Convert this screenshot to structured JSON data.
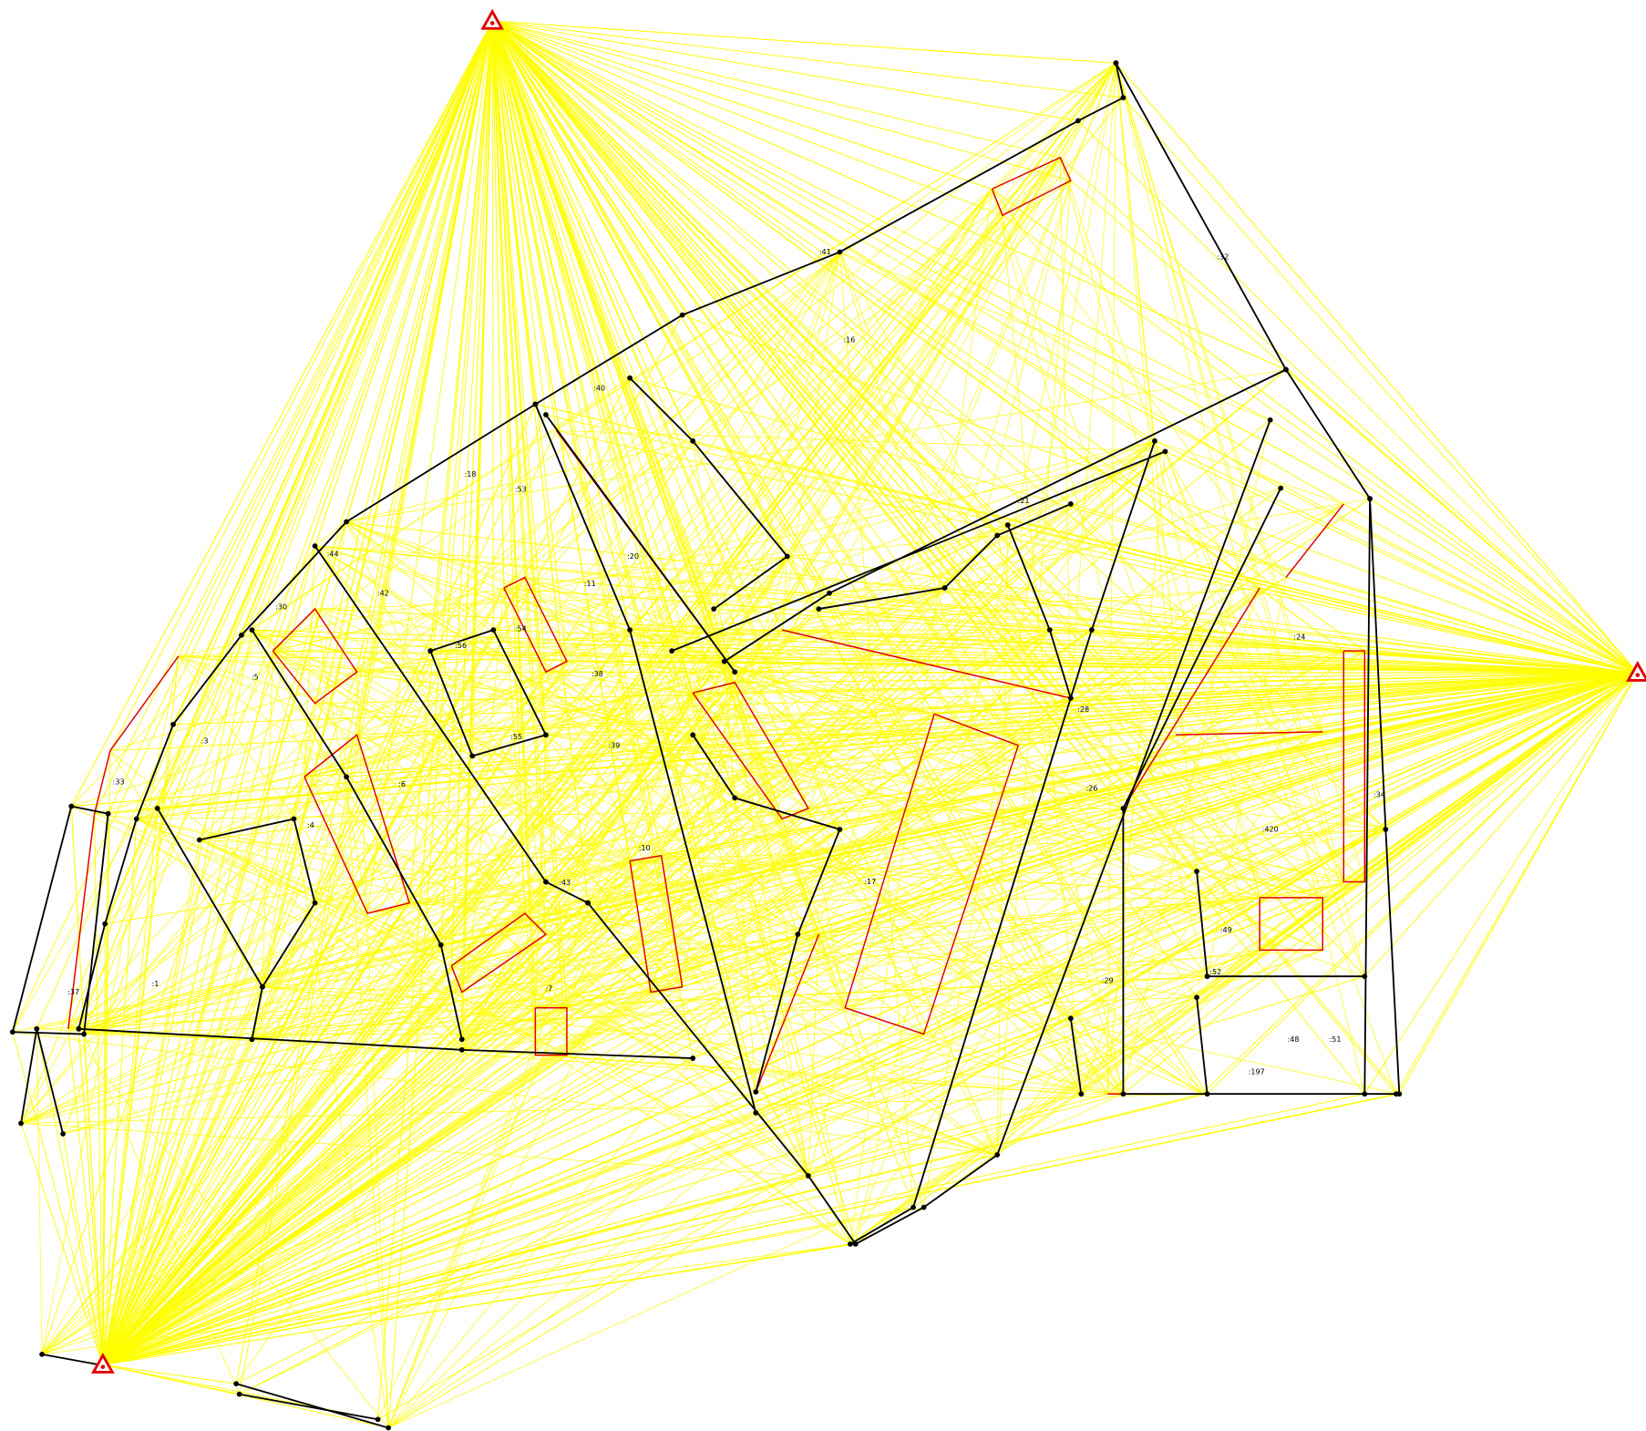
{
  "parcel_labels": [
    ":33",
    ":37",
    ":3",
    ":5",
    ":30",
    ":44",
    ":18",
    ":53",
    ":40",
    ":41",
    ":16",
    ":32",
    ":21",
    ":20",
    ":11",
    ":54",
    ":56",
    ":42",
    ":38",
    ":39",
    ":55",
    ":6",
    ":4",
    ":1",
    ":43",
    ":7",
    ":10",
    ":17",
    ":28",
    ":26",
    ":24",
    ":29",
    ":34",
    ":420",
    ":49",
    ":52",
    ":48",
    ":51",
    ":197"
  ]
}
